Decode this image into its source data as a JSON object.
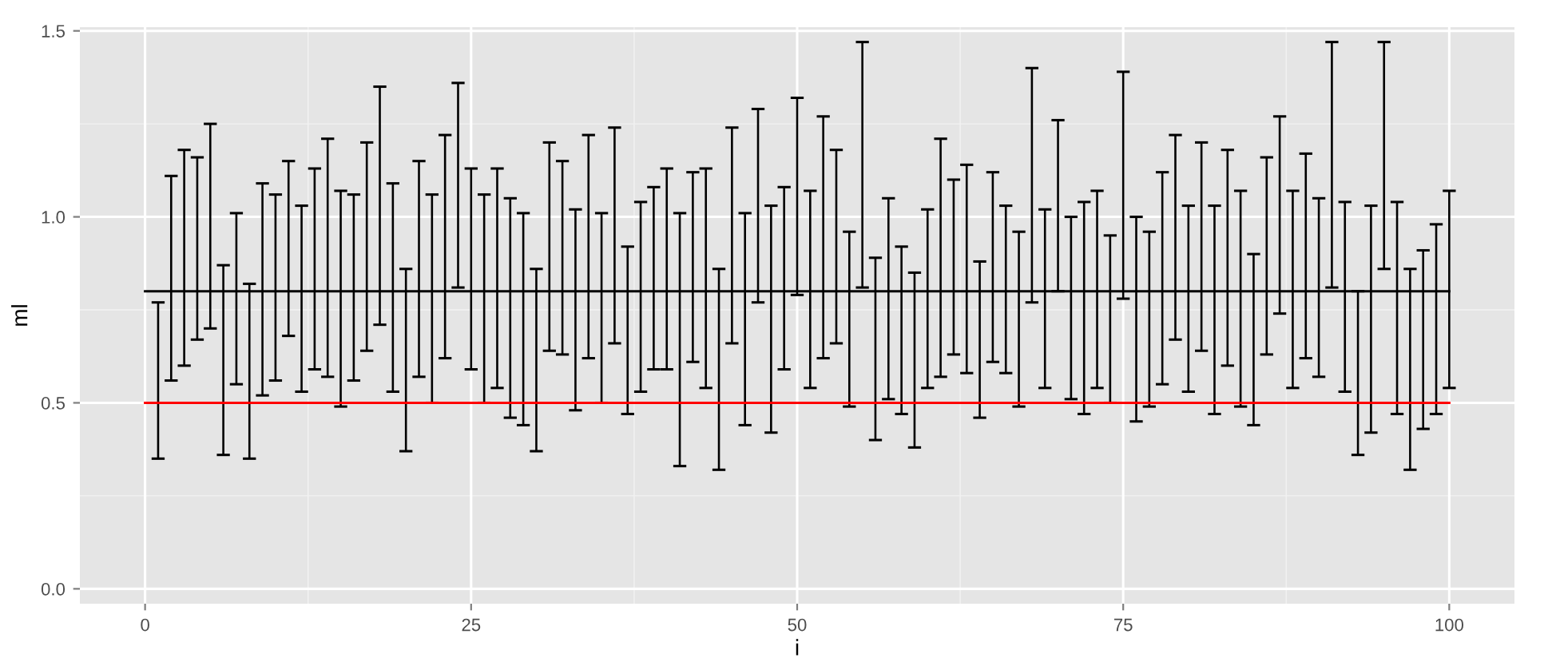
{
  "chart_data": {
    "type": "bar",
    "xlabel": "i",
    "ylabel": "ml",
    "xlim": [
      -5,
      105
    ],
    "ylim": [
      -0.04,
      1.51
    ],
    "xticks": [
      0,
      25,
      50,
      75,
      100
    ],
    "yticks": [
      {
        "value": 0,
        "label": "0.0"
      },
      {
        "value": 0.5,
        "label": "0.5"
      },
      {
        "value": 1,
        "label": "1.0"
      },
      {
        "value": 1.5,
        "label": "1.5"
      }
    ],
    "grid": true,
    "series": [
      {
        "color": "#000000",
        "x": [
          1,
          2,
          3,
          4,
          5,
          6,
          7,
          8,
          9,
          10,
          11,
          12,
          13,
          14,
          15,
          16,
          17,
          18,
          19,
          20,
          21,
          22,
          23,
          24,
          25,
          26,
          27,
          28,
          29,
          30,
          31,
          32,
          33,
          34,
          35,
          36,
          37,
          38,
          39,
          40,
          41,
          42,
          43,
          44,
          45,
          46,
          47,
          48,
          49,
          50,
          51,
          52,
          53,
          54,
          55,
          56,
          57,
          58,
          59,
          60,
          61,
          62,
          63,
          64,
          65,
          66,
          67,
          68,
          69,
          70,
          71,
          72,
          73,
          74,
          75,
          76,
          77,
          78,
          79,
          80,
          81,
          82,
          83,
          84,
          85,
          86,
          87,
          88,
          89,
          90,
          91,
          92,
          93,
          94,
          95,
          96,
          97,
          98,
          99,
          100
        ],
        "base": [
          0.35,
          0.56,
          0.6,
          0.67,
          0.7,
          0.36,
          0.55,
          0.35,
          0.52,
          0.56,
          0.68,
          0.53,
          0.59,
          0.57,
          0.49,
          0.56,
          0.64,
          0.71,
          0.53,
          0.37,
          0.57,
          0.5,
          0.62,
          0.81,
          0.59,
          0.5,
          0.54,
          0.46,
          0.44,
          0.37,
          0.64,
          0.63,
          0.48,
          0.62,
          0.5,
          0.66,
          0.47,
          0.53,
          0.59,
          0.59,
          0.33,
          0.61,
          0.54,
          0.32,
          0.66,
          0.44,
          0.77,
          0.42,
          0.59,
          0.79,
          0.54,
          0.62,
          0.66,
          0.49,
          0.81,
          0.4,
          0.51,
          0.47,
          0.38,
          0.54,
          0.57,
          0.63,
          0.58,
          0.46,
          0.61,
          0.58,
          0.49,
          0.77,
          0.54,
          0.8,
          0.51,
          0.47,
          0.54,
          0.5,
          0.78,
          0.45,
          0.49,
          0.55,
          0.67,
          0.53,
          0.64,
          0.47,
          0.6,
          0.49,
          0.44,
          0.63,
          0.74,
          0.54,
          0.62,
          0.57,
          0.81,
          0.53,
          0.36,
          0.42,
          0.86,
          0.47,
          0.32,
          0.43,
          0.47,
          0.54
        ],
        "values": [
          0.42,
          0.55,
          0.58,
          0.49,
          0.55,
          0.51,
          0.46,
          0.47,
          0.57,
          0.5,
          0.47,
          0.5,
          0.54,
          0.64,
          0.58,
          0.5,
          0.56,
          0.64,
          0.56,
          0.49,
          0.58,
          0.56,
          0.6,
          0.55,
          0.54,
          0.56,
          0.59,
          0.59,
          0.57,
          0.49,
          0.56,
          0.52,
          0.54,
          0.6,
          0.51,
          0.58,
          0.45,
          0.51,
          0.49,
          0.54,
          0.68,
          0.51,
          0.59,
          0.54,
          0.58,
          0.57,
          0.52,
          0.61,
          0.49,
          0.53,
          0.53,
          0.65,
          0.52,
          0.47,
          0.66,
          0.49,
          0.54,
          0.45,
          0.47,
          0.48,
          0.64,
          0.47,
          0.56,
          0.42,
          0.51,
          0.45,
          0.47,
          0.63,
          0.48,
          0.46,
          0.49,
          0.57,
          0.53,
          0.45,
          0.61,
          0.55,
          0.47,
          0.57,
          0.55,
          0.5,
          0.56,
          0.56,
          0.58,
          0.58,
          0.46,
          0.53,
          0.53,
          0.53,
          0.55,
          0.48,
          0.66,
          0.51,
          0.44,
          0.61,
          0.61,
          0.57,
          0.54,
          0.48,
          0.51,
          0.53
        ]
      },
      {
        "type": "line",
        "color": "#000000",
        "line_style": "solid",
        "x": [
          0,
          100
        ],
        "values": [
          0.8,
          0.8
        ]
      },
      {
        "type": "line",
        "color": "#ff0000",
        "line_style": "solid",
        "x": [
          0,
          100
        ],
        "values": [
          0.5,
          0.5
        ]
      }
    ]
  }
}
